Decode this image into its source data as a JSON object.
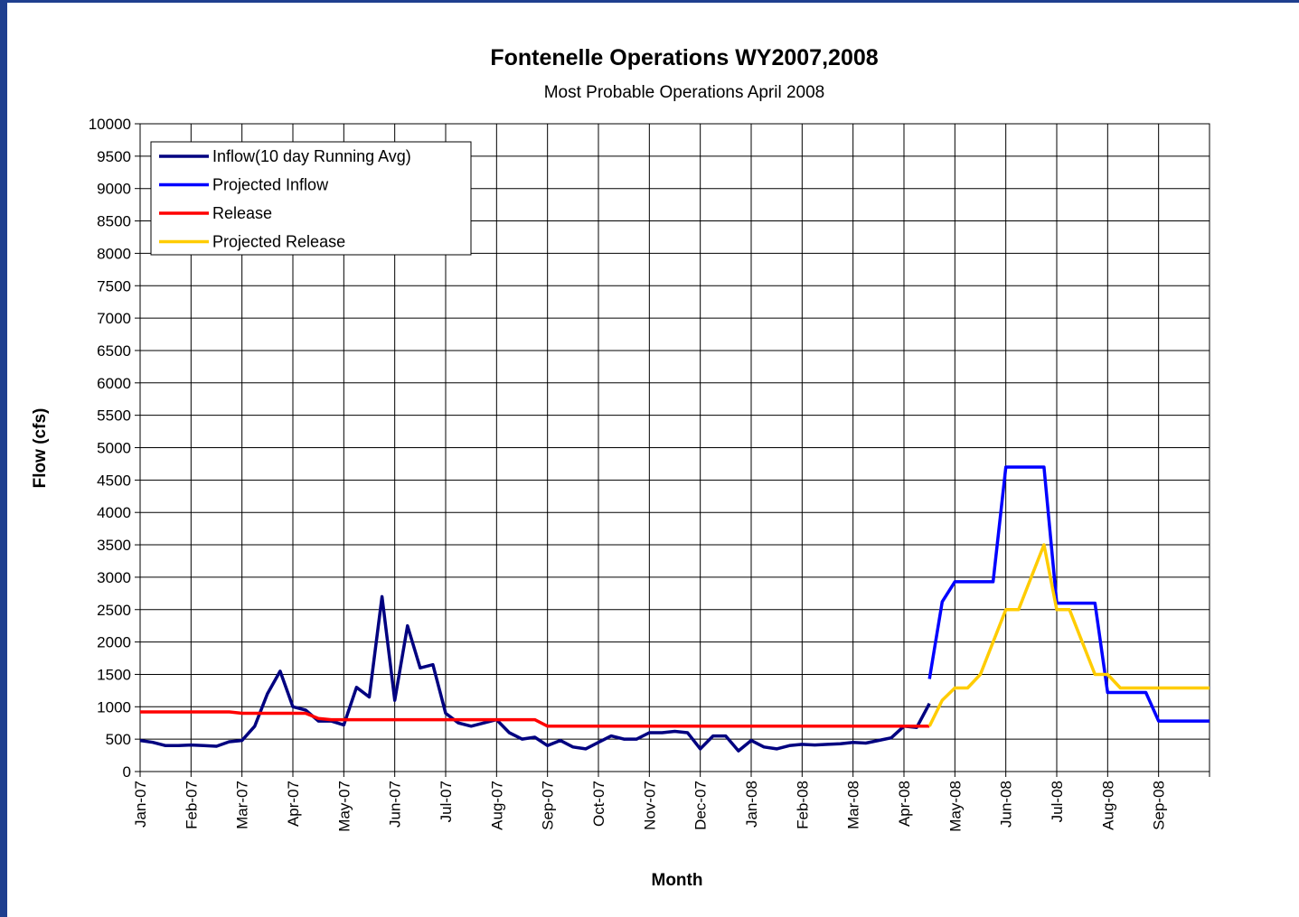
{
  "chart_data": {
    "type": "line",
    "title": "Fontenelle Operations WY2007,2008",
    "subtitle": "Most Probable Operations April 2008",
    "x_label": "Month",
    "y_label": "Flow (cfs)",
    "categories": [
      "Jan-07",
      null,
      null,
      null,
      "Feb-07",
      null,
      null,
      null,
      "Mar-07",
      null,
      null,
      null,
      "Apr-07",
      null,
      null,
      null,
      "May-07",
      null,
      null,
      null,
      "Jun-07",
      null,
      null,
      null,
      "Jul-07",
      null,
      null,
      null,
      "Aug-07",
      null,
      null,
      null,
      "Sep-07",
      null,
      null,
      null,
      "Oct-07",
      null,
      null,
      null,
      "Nov-07",
      null,
      null,
      null,
      "Dec-07",
      null,
      null,
      null,
      "Jan-08",
      null,
      null,
      null,
      "Feb-08",
      null,
      null,
      null,
      "Mar-08",
      null,
      null,
      null,
      "Apr-08",
      null,
      null,
      null,
      "May-08",
      null,
      null,
      null,
      "Jun-08",
      null,
      null,
      null,
      "Jul-08",
      null,
      null,
      null,
      "Aug-08",
      null,
      null,
      null,
      "Sep-08",
      null,
      null,
      null,
      null
    ],
    "series": [
      {
        "name": "Inflow(10 day Running Avg)",
        "color": "#000080",
        "values": [
          480,
          450,
          400,
          400,
          410,
          400,
          390,
          460,
          480,
          700,
          1200,
          1550,
          1000,
          950,
          780,
          780,
          720,
          1300,
          1150,
          2700,
          1100,
          2250,
          1600,
          1650,
          900,
          750,
          700,
          750,
          800,
          600,
          500,
          530,
          400,
          480,
          380,
          350,
          450,
          550,
          500,
          500,
          600,
          600,
          620,
          600,
          350,
          550,
          550,
          320,
          480,
          380,
          350,
          400,
          420,
          410,
          420,
          430,
          450,
          440,
          480,
          520,
          700,
          680,
          1050,
          null,
          null,
          null,
          null,
          null,
          null,
          null,
          null,
          null,
          null,
          null,
          null,
          null,
          null,
          null,
          null,
          null,
          null,
          null,
          null,
          null,
          null
        ]
      },
      {
        "name": "Projected Inflow",
        "color": "#0000ff",
        "values": [
          null,
          null,
          null,
          null,
          null,
          null,
          null,
          null,
          null,
          null,
          null,
          null,
          null,
          null,
          null,
          null,
          null,
          null,
          null,
          null,
          null,
          null,
          null,
          null,
          null,
          null,
          null,
          null,
          null,
          null,
          null,
          null,
          null,
          null,
          null,
          null,
          null,
          null,
          null,
          null,
          null,
          null,
          null,
          null,
          null,
          null,
          null,
          null,
          null,
          null,
          null,
          null,
          null,
          null,
          null,
          null,
          null,
          null,
          null,
          null,
          null,
          null,
          1430,
          2620,
          2930,
          2930,
          2930,
          2930,
          4700,
          4700,
          4700,
          4700,
          2600,
          2600,
          2600,
          2600,
          1220,
          1220,
          1220,
          1220,
          780,
          780,
          780,
          780,
          780
        ]
      },
      {
        "name": "Release",
        "color": "#ff0000",
        "values": [
          920,
          920,
          920,
          920,
          920,
          920,
          920,
          920,
          900,
          900,
          900,
          900,
          900,
          900,
          820,
          800,
          800,
          800,
          800,
          800,
          800,
          800,
          800,
          800,
          800,
          800,
          800,
          800,
          800,
          800,
          800,
          800,
          700,
          700,
          700,
          700,
          700,
          700,
          700,
          700,
          700,
          700,
          700,
          700,
          700,
          700,
          700,
          700,
          700,
          700,
          700,
          700,
          700,
          700,
          700,
          700,
          700,
          700,
          700,
          700,
          700,
          700,
          700,
          null,
          null,
          null,
          null,
          null,
          null,
          null,
          null,
          null,
          null,
          null,
          null,
          null,
          null,
          null,
          null,
          null,
          null,
          null,
          null,
          null,
          null
        ]
      },
      {
        "name": "Projected Release",
        "color": "#ffcc00",
        "values": [
          null,
          null,
          null,
          null,
          null,
          null,
          null,
          null,
          null,
          null,
          null,
          null,
          null,
          null,
          null,
          null,
          null,
          null,
          null,
          null,
          null,
          null,
          null,
          null,
          null,
          null,
          null,
          null,
          null,
          null,
          null,
          null,
          null,
          null,
          null,
          null,
          null,
          null,
          null,
          null,
          null,
          null,
          null,
          null,
          null,
          null,
          null,
          null,
          null,
          null,
          null,
          null,
          null,
          null,
          null,
          null,
          null,
          null,
          null,
          null,
          null,
          null,
          700,
          1100,
          1290,
          1290,
          1500,
          2000,
          2500,
          2500,
          3000,
          3500,
          2500,
          2500,
          2000,
          1500,
          1500,
          1290,
          1290,
          1290,
          1290,
          1290,
          1290,
          1290,
          1290
        ]
      }
    ],
    "ylim": [
      0,
      10000
    ],
    "yticks": [
      0,
      500,
      1000,
      1500,
      2000,
      2500,
      3000,
      3500,
      4000,
      4500,
      5000,
      5500,
      6000,
      6500,
      7000,
      7500,
      8000,
      8500,
      9000,
      9500,
      10000
    ],
    "grid": true,
    "legend": "top-left"
  }
}
